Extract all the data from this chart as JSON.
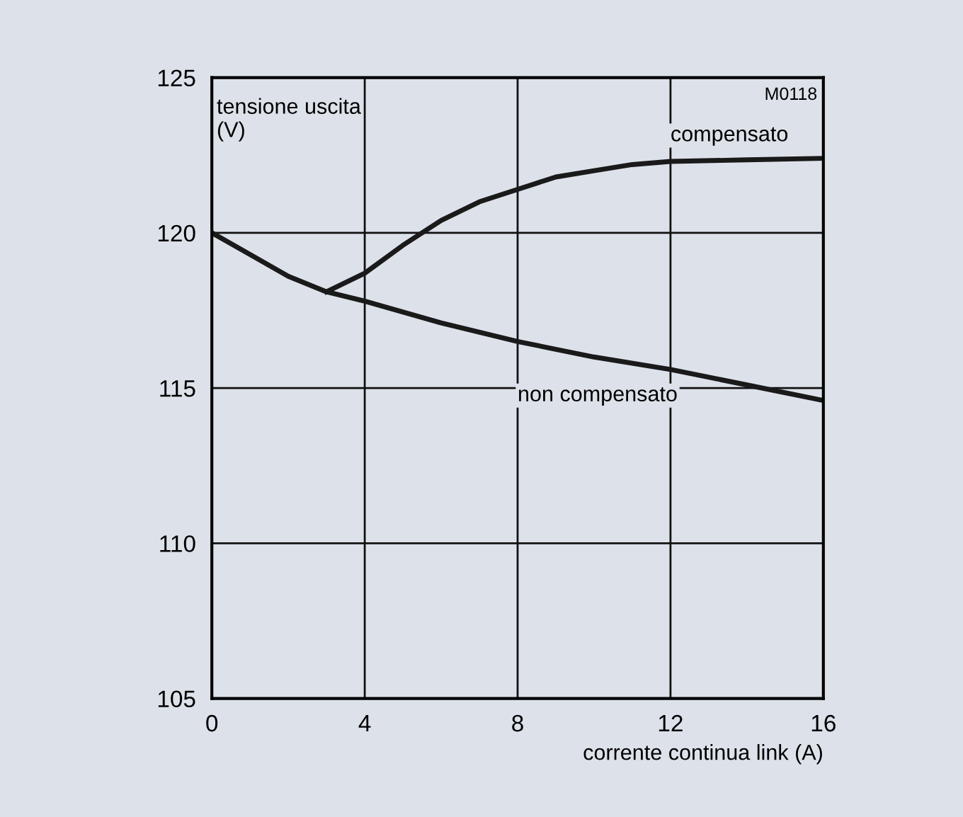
{
  "chart_data": {
    "type": "line",
    "xlabel": "corrente continua link (A)",
    "ylabel": "tensione uscita\n(V)",
    "annotations": [
      "M0118"
    ],
    "series": [
      {
        "name": "compensato",
        "color": "#1a1a1a",
        "x": [
          3,
          4,
          5,
          6,
          7,
          8,
          9,
          10,
          11,
          12,
          14,
          16
        ],
        "values": [
          118.1,
          118.7,
          119.6,
          120.4,
          121.0,
          121.4,
          121.8,
          122.0,
          122.2,
          122.3,
          122.35,
          122.4
        ]
      },
      {
        "name": "non compensato",
        "color": "#1a1a1a",
        "x": [
          0,
          1,
          2,
          3,
          4,
          6,
          8,
          10,
          12,
          14,
          16
        ],
        "values": [
          120.0,
          119.3,
          118.6,
          118.1,
          117.8,
          117.1,
          116.5,
          116.0,
          115.6,
          115.1,
          114.6
        ]
      }
    ],
    "xlim": [
      0,
      16
    ],
    "xticks": [
      0,
      4,
      8,
      12,
      16
    ],
    "ylim": [
      105,
      125
    ],
    "yticks": [
      105,
      110,
      115,
      120,
      125
    ],
    "grid": true,
    "legend": false,
    "marker": "none",
    "line_style": "solid"
  }
}
